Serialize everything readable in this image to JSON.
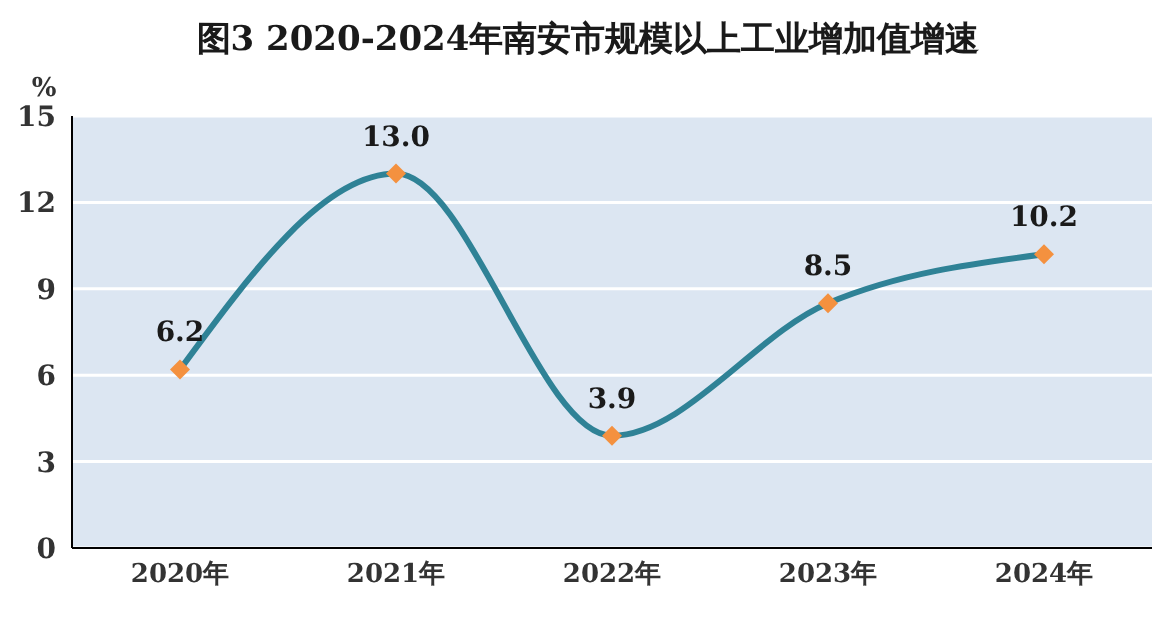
{
  "chart_data": {
    "type": "line",
    "title": "图3  2020-2024年南安市规模以上工业增加值增速",
    "ylabel": "%",
    "categories": [
      "2020年",
      "2021年",
      "2022年",
      "2023年",
      "2024年"
    ],
    "series": [
      {
        "color": "#2f8296",
        "values": [
          6.2,
          13.0,
          3.9,
          8.5,
          10.2
        ],
        "value_labels": [
          "6.2",
          "13.0",
          "3.9",
          "8.5",
          "10.2"
        ]
      }
    ],
    "ylim": [
      0,
      15
    ],
    "yticks": [
      0,
      3,
      6,
      9,
      12,
      15
    ],
    "grid": "y",
    "marker": "diamond"
  }
}
